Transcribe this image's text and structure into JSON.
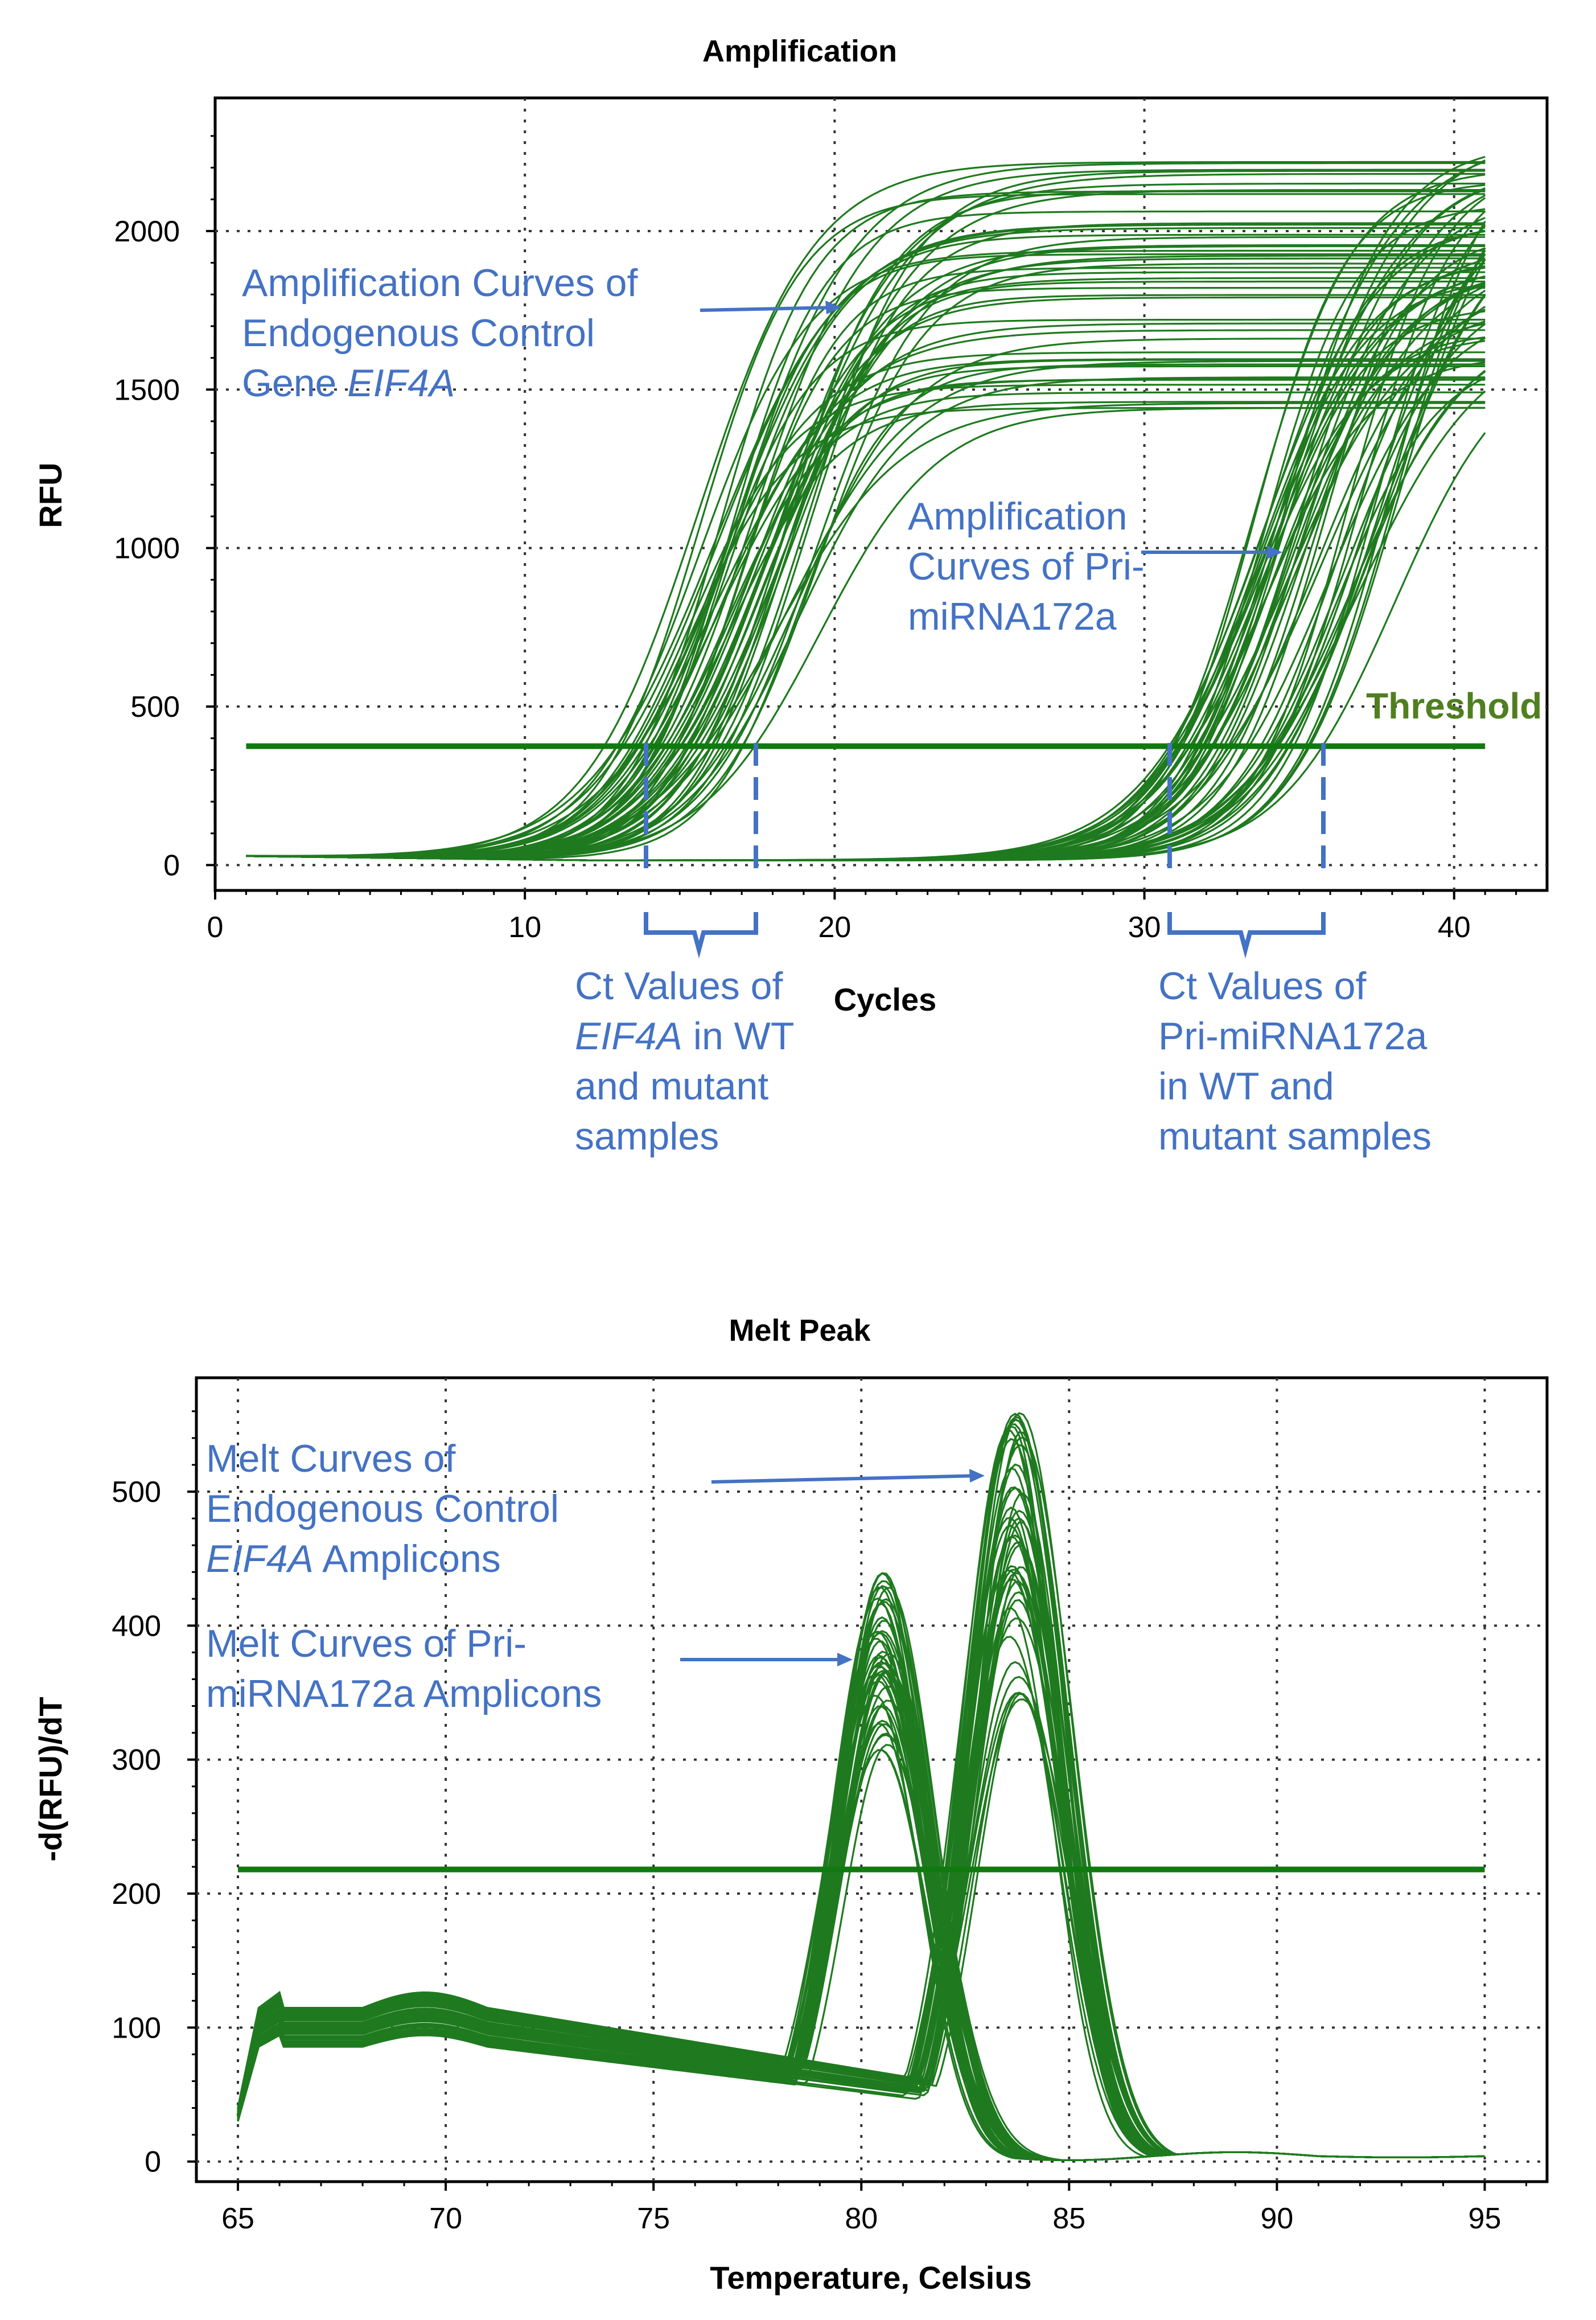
{
  "colors": {
    "curve": "#1f7a1f",
    "threshold": "#107a10",
    "annotation": "#4472c4",
    "threshold_label": "#4f7f1f",
    "grid": "#333333",
    "axis": "#000000"
  },
  "chart_data": [
    {
      "type": "line",
      "title": "Amplification",
      "xlabel": "Cycles",
      "ylabel": "RFU",
      "xlim": [
        0,
        43
      ],
      "ylim": [
        -80,
        2420
      ],
      "xticks": [
        0,
        10,
        20,
        30,
        40
      ],
      "yticks": [
        0,
        500,
        1000,
        1500,
        2000
      ],
      "grid": true,
      "threshold": {
        "value": 375,
        "x_range": [
          1,
          41
        ],
        "label": "Threshold"
      },
      "series": [
        {
          "group": "EIF4A",
          "count": 50,
          "x_range": [
            1,
            41
          ],
          "midpoint_range": [
            15.3,
            19.6
          ],
          "plateau_range": [
            1420,
            2280
          ],
          "baseline": 15
        },
        {
          "group": "Pri-miRNA172a",
          "count": 50,
          "x_range": [
            1,
            41
          ],
          "midpoint_range": [
            33.5,
            38.3
          ],
          "plateau_range": [
            1500,
            2350
          ],
          "baseline": 15
        }
      ],
      "annotations": [
        {
          "lines": [
            "Amplification Curves of",
            "Endogenous Control",
            "Gene |EIF4A|"
          ]
        },
        {
          "lines": [
            "Amplification",
            "Curves of Pri-",
            "miRNA172a"
          ]
        },
        {
          "lines": [
            "Ct Values of",
            "|EIF4A| in WT",
            "and mutant",
            "samples"
          ]
        },
        {
          "lines": [
            "Ct Values of",
            "Pri-miRNA172a",
            "in WT and",
            "mutant samples"
          ]
        }
      ]
    },
    {
      "type": "line",
      "title": "Melt Peak",
      "xlabel": "Temperature, Celsius",
      "ylabel": "-d(RFU)/dT",
      "xlim": [
        64,
        96.5
      ],
      "ylim": [
        -15,
        585
      ],
      "xticks": [
        65,
        70,
        75,
        80,
        85,
        90,
        95
      ],
      "yticks": [
        0,
        100,
        200,
        300,
        400,
        500
      ],
      "grid": true,
      "threshold": {
        "value": 218,
        "x_range": [
          65,
          95
        ]
      },
      "series": [
        {
          "group": "Pri-miRNA172a amplicons",
          "count": 45,
          "peak_temperature": 80.5,
          "peak_range": [
            300,
            445
          ]
        },
        {
          "group": "EIF4A amplicons",
          "count": 45,
          "peak_temperature": 83.7,
          "peak_range": [
            345,
            560
          ]
        }
      ],
      "annotations": [
        {
          "lines": [
            "Melt Curves of",
            "Endogenous Control",
            "|EIF4A| Amplicons"
          ]
        },
        {
          "lines": [
            "Melt Curves of Pri-",
            "miRNA172a  Amplicons"
          ]
        }
      ]
    }
  ]
}
